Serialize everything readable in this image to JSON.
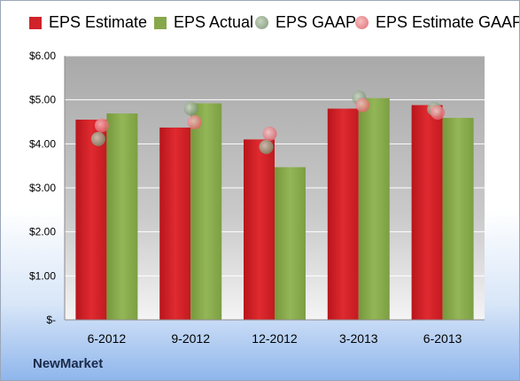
{
  "company": "NewMarket",
  "colors": {
    "eps_estimate": "#d0232a",
    "eps_actual": "#86a84a",
    "eps_gaap": "#8fa687",
    "eps_estimate_gaap": "#e97b80"
  },
  "chart_data": {
    "type": "bar",
    "title": "",
    "xlabel": "",
    "ylabel": "",
    "ylim": [
      0,
      6
    ],
    "yticks": [
      0,
      1,
      2,
      3,
      4,
      5,
      6
    ],
    "ytick_labels": [
      "$-",
      "$1.00",
      "$2.00",
      "$3.00",
      "$4.00",
      "$5.00",
      "$6.00"
    ],
    "categories": [
      "6-2012",
      "9-2012",
      "12-2012",
      "3-2013",
      "6-2013"
    ],
    "legend_position": "top",
    "grid": true,
    "series": [
      {
        "name": "EPS Estimate",
        "kind": "bar",
        "values": [
          4.55,
          4.37,
          4.1,
          4.8,
          4.88
        ]
      },
      {
        "name": "EPS Actual",
        "kind": "bar",
        "values": [
          4.69,
          4.92,
          3.47,
          5.04,
          4.59
        ]
      },
      {
        "name": "EPS GAAP",
        "kind": "marker",
        "values": [
          4.11,
          4.8,
          3.93,
          5.05,
          4.79
        ]
      },
      {
        "name": "EPS Estimate GAAP",
        "kind": "marker",
        "values": [
          4.42,
          4.49,
          4.23,
          4.88,
          4.71
        ]
      }
    ]
  }
}
